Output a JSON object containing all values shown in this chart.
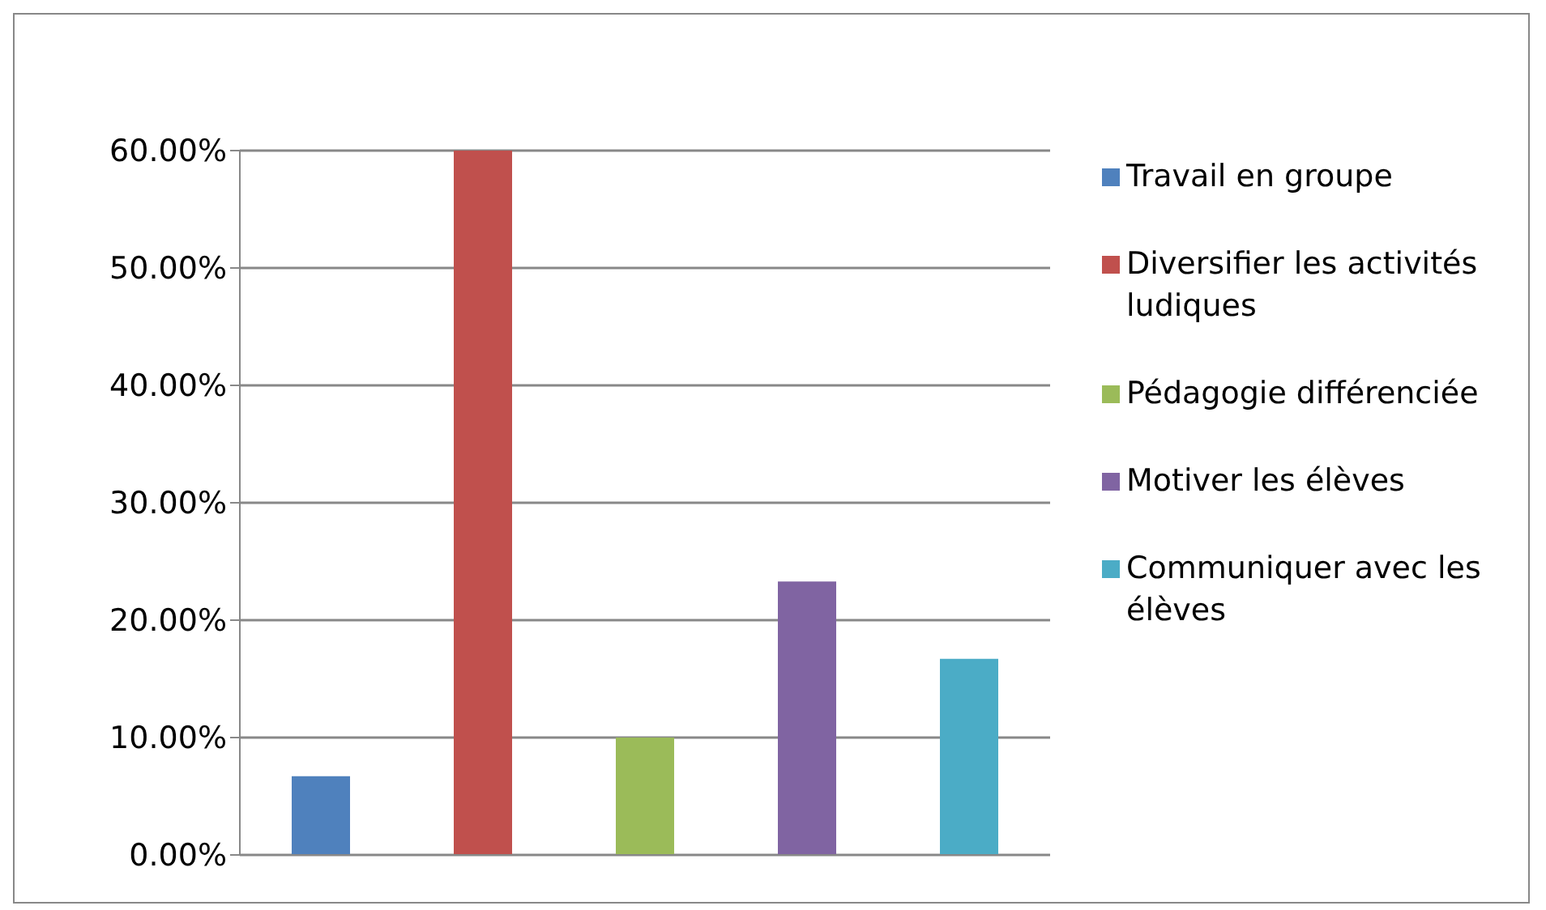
{
  "chart_data": {
    "type": "bar",
    "categories": [
      null,
      null,
      null,
      null,
      null
    ],
    "series": [
      {
        "name": "Travail en groupe",
        "color": "#4f81bd",
        "values": [
          6.7,
          null,
          null,
          null,
          null
        ]
      },
      {
        "name": "Diversifier les activités ludiques",
        "color": "#c0504d",
        "values": [
          null,
          60,
          null,
          null,
          null
        ]
      },
      {
        "name": "Pédagogie différenciée",
        "color": "#9bbb59",
        "values": [
          null,
          null,
          10,
          null,
          null
        ]
      },
      {
        "name": "Motiver les élèves",
        "color": "#8064a2",
        "values": [
          null,
          null,
          null,
          23.3,
          null
        ]
      },
      {
        "name": "Communiquer avec les élèves",
        "color": "#4bacc6",
        "values": [
          null,
          null,
          null,
          null,
          16.7
        ]
      }
    ],
    "ylim": [
      0,
      60
    ],
    "yticks": [
      {
        "value": 0,
        "label": "0.00%"
      },
      {
        "value": 10,
        "label": "10.00%"
      },
      {
        "value": 20,
        "label": "20.00%"
      },
      {
        "value": 30,
        "label": "30.00%"
      },
      {
        "value": 40,
        "label": "40.00%"
      },
      {
        "value": 50,
        "label": "50.00%"
      },
      {
        "value": 60,
        "label": "60.00%"
      }
    ],
    "grid": "y",
    "legend": "right"
  }
}
